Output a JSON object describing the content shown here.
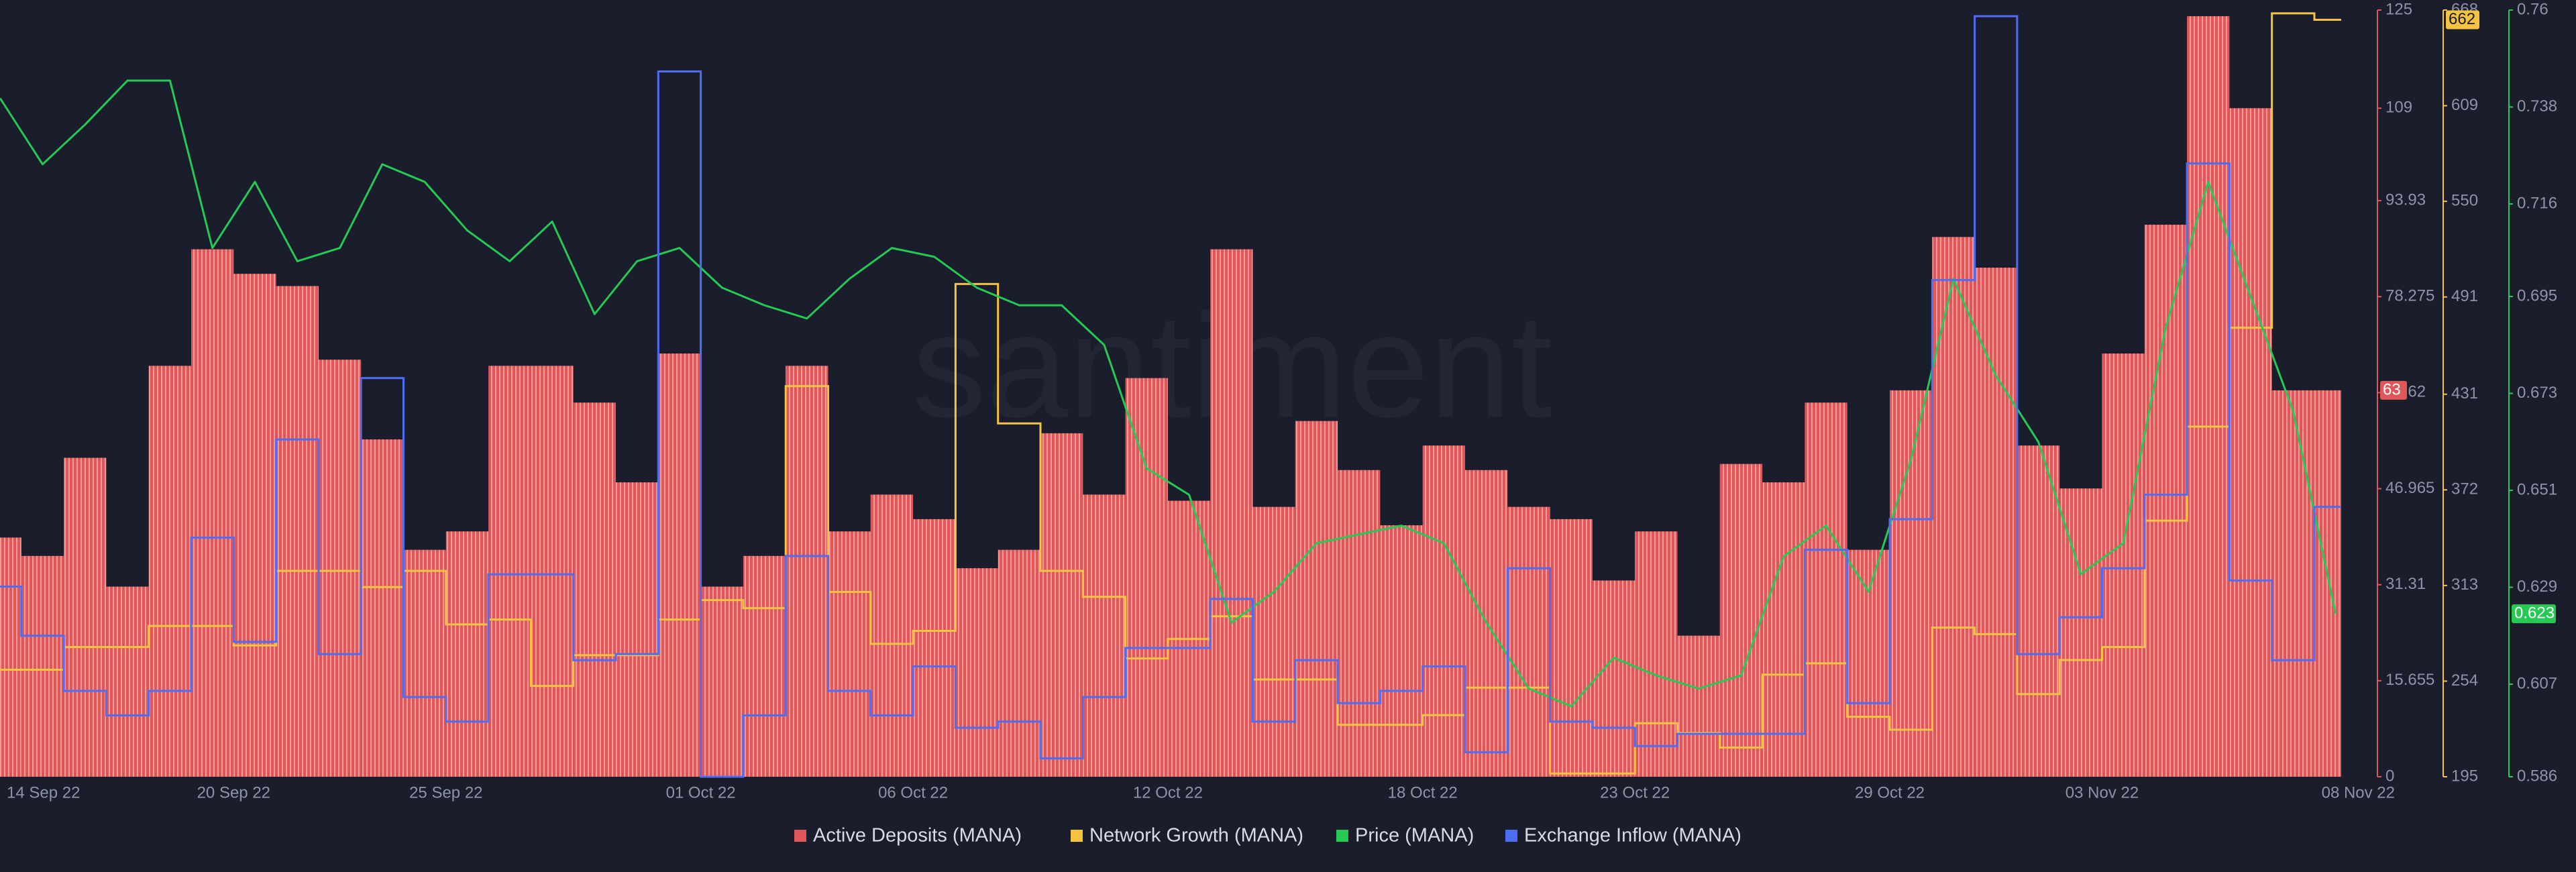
{
  "chart_data": {
    "type": "combo",
    "watermark": "santiment",
    "categories": [
      "14 Sep 22",
      null,
      null,
      null,
      null,
      null,
      "20 Sep 22",
      null,
      null,
      null,
      null,
      "25 Sep 22",
      null,
      null,
      null,
      null,
      null,
      "01 Oct 22",
      null,
      null,
      null,
      null,
      "06 Oct 22",
      null,
      null,
      null,
      null,
      null,
      "12 Oct 22",
      null,
      null,
      null,
      null,
      null,
      "18 Oct 22",
      null,
      null,
      null,
      null,
      "23 Oct 22",
      null,
      null,
      null,
      null,
      null,
      "29 Oct 22",
      null,
      null,
      null,
      null,
      "03 Nov 22",
      null,
      null,
      null,
      null,
      "08 Nov 22"
    ],
    "ylim": [
      0,
      125
    ],
    "yticks": [
      0,
      15.655,
      31.31,
      46.965,
      62.62,
      78.275,
      93.93,
      109,
      125
    ],
    "y2lim": [
      195,
      668
    ],
    "y2ticks": [
      195,
      254,
      313,
      372,
      431,
      491,
      550,
      609,
      668
    ],
    "y3lim": [
      0.586,
      0.76
    ],
    "y3ticks": [
      0.586,
      0.607,
      0.629,
      0.651,
      0.673,
      0.695,
      0.716,
      0.738,
      0.76
    ],
    "series": [
      {
        "name": "Active Deposits (MANA)",
        "type": "bar",
        "axis": "y",
        "color": "#e0575a",
        "values": [
          39,
          36,
          52,
          31,
          67,
          86,
          82,
          80,
          68,
          55,
          37,
          40,
          67,
          67,
          61,
          48,
          69,
          31,
          36,
          67,
          40,
          46,
          42,
          34,
          37,
          56,
          46,
          65,
          45,
          86,
          44,
          58,
          50,
          41,
          54,
          50,
          44,
          42,
          32,
          40,
          23,
          51,
          48,
          61,
          37,
          63,
          88,
          83,
          54,
          47,
          69,
          90,
          124,
          109,
          63,
          63
        ]
      },
      {
        "name": "Network Growth (MANA)",
        "type": "step",
        "axis": "y2",
        "color": "#f5c242",
        "values": [
          261,
          261,
          275,
          275,
          288,
          288,
          276,
          322,
          322,
          312,
          322,
          289,
          292,
          251,
          270,
          270,
          292,
          304,
          299,
          436,
          309,
          277,
          285,
          499,
          413,
          322,
          306,
          268,
          280,
          294,
          255,
          255,
          227,
          227,
          233,
          250,
          250,
          197,
          197,
          228,
          222,
          213,
          258,
          265,
          232,
          224,
          287,
          283,
          246,
          267,
          275,
          353,
          411,
          472,
          666,
          662
        ]
      },
      {
        "name": "Price (MANA)",
        "type": "line",
        "axis": "y3",
        "color": "#26c953",
        "values": [
          0.74,
          0.725,
          0.734,
          0.744,
          0.744,
          0.706,
          0.721,
          0.703,
          0.706,
          0.725,
          0.721,
          0.71,
          0.703,
          0.712,
          0.691,
          0.703,
          0.706,
          0.697,
          0.693,
          0.69,
          0.699,
          0.706,
          0.704,
          0.697,
          0.693,
          0.693,
          0.684,
          0.656,
          0.65,
          0.621,
          0.628,
          0.639,
          0.641,
          0.643,
          0.639,
          0.621,
          0.606,
          0.602,
          0.613,
          0.609,
          0.606,
          0.609,
          0.636,
          0.643,
          0.628,
          0.658,
          0.699,
          0.677,
          0.662,
          0.632,
          0.639,
          0.688,
          0.721,
          0.695,
          0.669,
          0.623
        ]
      },
      {
        "name": "Exchange Inflow (MANA)",
        "type": "step",
        "axis": "y",
        "color": "#4f6cf5",
        "values": [
          31,
          23,
          14,
          10,
          14,
          39,
          22,
          55,
          20,
          65,
          13,
          9,
          33,
          33,
          19,
          20,
          115,
          0,
          10,
          36,
          14,
          10,
          18,
          8,
          9,
          3,
          13,
          21,
          21,
          29,
          9,
          19,
          12,
          14,
          18,
          4,
          34,
          9,
          8,
          5,
          7,
          7,
          7,
          37,
          12,
          42,
          81,
          124,
          20,
          26,
          34,
          46,
          100,
          32,
          19,
          44
        ]
      }
    ]
  }
}
